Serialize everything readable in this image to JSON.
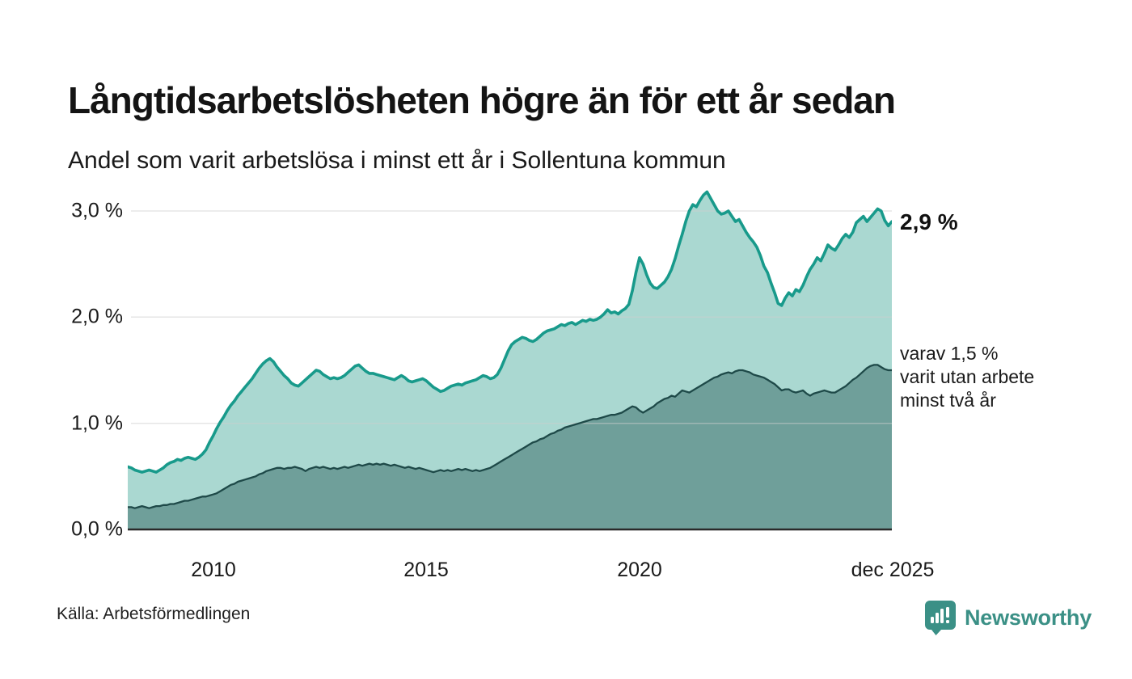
{
  "title": "Långtidsarbetslösheten högre än för ett år sedan",
  "subtitle": "Andel som varit arbetslösa i minst ett år i Sollentuna kommun",
  "source": "Källa: Arbetsförmedlingen",
  "brand": {
    "name": "Newsworthy"
  },
  "annotations": {
    "latest_total": "2,9 %",
    "secondary": "varav 1,5 %\nvarit utan arbete\nminst två år"
  },
  "y_axis": {
    "labels": [
      "3,0 %",
      "2,0 %",
      "1,0 %",
      "0,0 %"
    ]
  },
  "x_axis": {
    "labels": [
      "2010",
      "2015",
      "2020",
      "dec 2025"
    ]
  },
  "colors": {
    "line_primary": "#189a8b",
    "fill_primary": "#aad8d1",
    "line_secondary": "#1e4948",
    "fill_secondary": "#6f9f9a",
    "gridline": "#cfcfcf",
    "baseline": "#2a2a2a",
    "brand_teal": "#3b9086"
  },
  "chart_data": {
    "type": "area",
    "title": "Långtidsarbetslösheten högre än för ett år sedan",
    "subtitle": "Andel som varit arbetslösa i minst ett år i Sollentuna kommun",
    "unit": "%",
    "frequency": "monthly",
    "x_start": "2008-01",
    "x_end": "2025-12",
    "x_tick_labels": [
      "2010",
      "2015",
      "2020",
      "dec 2025"
    ],
    "x_tick_positions": [
      "2010-01",
      "2015-01",
      "2020-01",
      "2025-12"
    ],
    "y_ticks": [
      0.0,
      1.0,
      2.0,
      3.0
    ],
    "ylim": [
      0.0,
      3.32
    ],
    "grid": "horizontal",
    "legend_position": "right-annotations",
    "series": [
      {
        "name": "Andel som varit arbetslösa minst ett år",
        "last_value": 2.9,
        "values": [
          0.59,
          0.58,
          0.56,
          0.55,
          0.54,
          0.55,
          0.56,
          0.55,
          0.54,
          0.56,
          0.58,
          0.61,
          0.63,
          0.64,
          0.66,
          0.65,
          0.67,
          0.68,
          0.67,
          0.66,
          0.68,
          0.71,
          0.75,
          0.82,
          0.88,
          0.95,
          1.01,
          1.06,
          1.12,
          1.17,
          1.21,
          1.26,
          1.3,
          1.34,
          1.38,
          1.42,
          1.47,
          1.52,
          1.56,
          1.59,
          1.61,
          1.58,
          1.53,
          1.49,
          1.45,
          1.42,
          1.38,
          1.36,
          1.35,
          1.38,
          1.41,
          1.44,
          1.47,
          1.5,
          1.49,
          1.46,
          1.44,
          1.42,
          1.43,
          1.42,
          1.43,
          1.45,
          1.48,
          1.51,
          1.54,
          1.55,
          1.52,
          1.49,
          1.47,
          1.47,
          1.46,
          1.45,
          1.44,
          1.43,
          1.42,
          1.41,
          1.43,
          1.45,
          1.43,
          1.4,
          1.39,
          1.4,
          1.41,
          1.42,
          1.4,
          1.37,
          1.34,
          1.32,
          1.3,
          1.31,
          1.33,
          1.35,
          1.36,
          1.37,
          1.36,
          1.38,
          1.39,
          1.4,
          1.41,
          1.43,
          1.45,
          1.44,
          1.42,
          1.43,
          1.46,
          1.52,
          1.6,
          1.68,
          1.74,
          1.77,
          1.79,
          1.81,
          1.8,
          1.78,
          1.77,
          1.79,
          1.82,
          1.85,
          1.87,
          1.88,
          1.89,
          1.91,
          1.93,
          1.92,
          1.94,
          1.95,
          1.93,
          1.95,
          1.97,
          1.96,
          1.98,
          1.97,
          1.98,
          2.0,
          2.03,
          2.07,
          2.04,
          2.05,
          2.03,
          2.06,
          2.08,
          2.12,
          2.25,
          2.42,
          2.56,
          2.5,
          2.4,
          2.32,
          2.28,
          2.27,
          2.3,
          2.33,
          2.38,
          2.45,
          2.55,
          2.67,
          2.78,
          2.9,
          3.0,
          3.06,
          3.04,
          3.1,
          3.15,
          3.18,
          3.12,
          3.06,
          3.0,
          2.97,
          2.98,
          3.0,
          2.95,
          2.9,
          2.92,
          2.86,
          2.8,
          2.75,
          2.71,
          2.66,
          2.58,
          2.48,
          2.42,
          2.32,
          2.23,
          2.13,
          2.11,
          2.18,
          2.23,
          2.2,
          2.26,
          2.24,
          2.3,
          2.38,
          2.45,
          2.5,
          2.56,
          2.53,
          2.6,
          2.68,
          2.65,
          2.63,
          2.68,
          2.74,
          2.78,
          2.75,
          2.8,
          2.89,
          2.92,
          2.95,
          2.9,
          2.94,
          2.98,
          3.02,
          3.0,
          2.91,
          2.86,
          2.9
        ]
      },
      {
        "name": "varav utan arbete minst två år",
        "last_value": 1.5,
        "values": [
          0.21,
          0.21,
          0.2,
          0.21,
          0.22,
          0.21,
          0.2,
          0.21,
          0.22,
          0.22,
          0.23,
          0.23,
          0.24,
          0.24,
          0.25,
          0.26,
          0.27,
          0.27,
          0.28,
          0.29,
          0.3,
          0.31,
          0.31,
          0.32,
          0.33,
          0.34,
          0.36,
          0.38,
          0.4,
          0.42,
          0.43,
          0.45,
          0.46,
          0.47,
          0.48,
          0.49,
          0.5,
          0.52,
          0.53,
          0.55,
          0.56,
          0.57,
          0.58,
          0.58,
          0.57,
          0.58,
          0.58,
          0.59,
          0.58,
          0.57,
          0.55,
          0.57,
          0.58,
          0.59,
          0.58,
          0.59,
          0.58,
          0.57,
          0.58,
          0.57,
          0.58,
          0.59,
          0.58,
          0.59,
          0.6,
          0.61,
          0.6,
          0.61,
          0.62,
          0.61,
          0.62,
          0.61,
          0.62,
          0.61,
          0.6,
          0.61,
          0.6,
          0.59,
          0.58,
          0.59,
          0.58,
          0.57,
          0.58,
          0.57,
          0.56,
          0.55,
          0.54,
          0.55,
          0.56,
          0.55,
          0.56,
          0.55,
          0.56,
          0.57,
          0.56,
          0.57,
          0.56,
          0.55,
          0.56,
          0.55,
          0.56,
          0.57,
          0.58,
          0.6,
          0.62,
          0.64,
          0.66,
          0.68,
          0.7,
          0.72,
          0.74,
          0.76,
          0.78,
          0.8,
          0.82,
          0.83,
          0.85,
          0.86,
          0.88,
          0.9,
          0.91,
          0.93,
          0.94,
          0.96,
          0.97,
          0.98,
          0.99,
          1.0,
          1.01,
          1.02,
          1.03,
          1.04,
          1.04,
          1.05,
          1.06,
          1.07,
          1.08,
          1.08,
          1.09,
          1.1,
          1.12,
          1.14,
          1.16,
          1.15,
          1.12,
          1.1,
          1.12,
          1.14,
          1.16,
          1.19,
          1.21,
          1.23,
          1.24,
          1.26,
          1.25,
          1.28,
          1.31,
          1.3,
          1.29,
          1.31,
          1.33,
          1.35,
          1.37,
          1.39,
          1.41,
          1.43,
          1.44,
          1.46,
          1.47,
          1.48,
          1.47,
          1.49,
          1.5,
          1.5,
          1.49,
          1.48,
          1.46,
          1.45,
          1.44,
          1.43,
          1.41,
          1.39,
          1.37,
          1.34,
          1.31,
          1.32,
          1.32,
          1.3,
          1.29,
          1.3,
          1.31,
          1.28,
          1.26,
          1.28,
          1.29,
          1.3,
          1.31,
          1.3,
          1.29,
          1.29,
          1.31,
          1.33,
          1.35,
          1.38,
          1.41,
          1.43,
          1.46,
          1.49,
          1.52,
          1.54,
          1.55,
          1.55,
          1.53,
          1.51,
          1.5,
          1.5
        ]
      }
    ]
  }
}
